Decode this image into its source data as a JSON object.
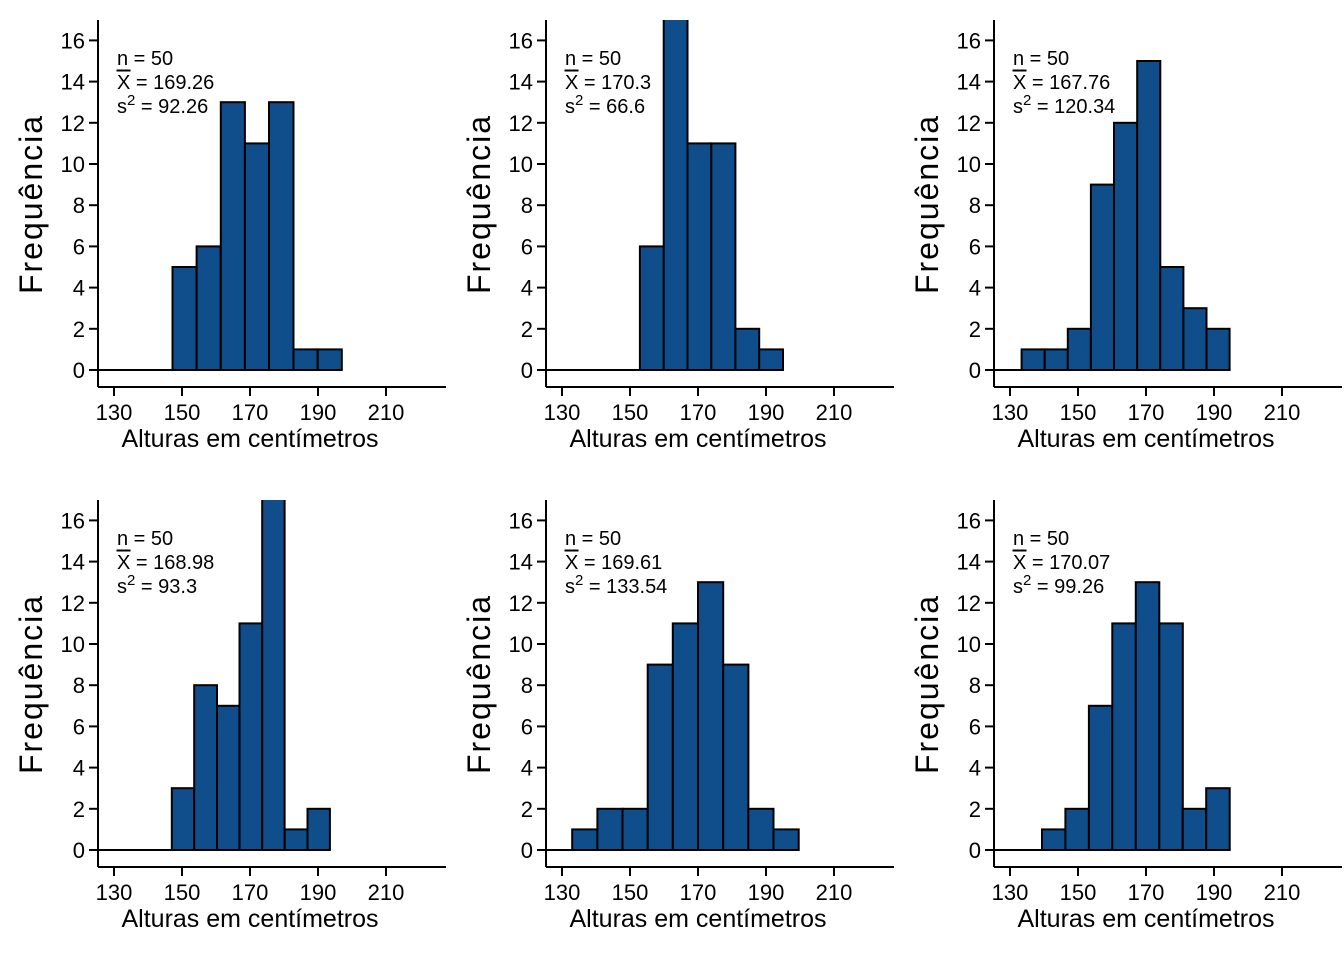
{
  "figure": {
    "background": "#ffffff",
    "text_color": "#000000",
    "annotation_symbols": {
      "n_symbol": "n",
      "mean_symbol": "X",
      "mean_decoration": "overline",
      "variance_symbol": "s",
      "variance_exponent": "2",
      "equals": " = "
    }
  },
  "chart_data": {
    "type": "bar",
    "variant": "histogram-small-multiples",
    "grid": {
      "rows": 2,
      "cols": 3
    },
    "shared": {
      "title": "",
      "xlabel": "Alturas em centímetros",
      "ylabel": "Frequência",
      "x_ticks": [
        130,
        150,
        170,
        190,
        210
      ],
      "x_tick_labels": [
        "130",
        "150",
        "170",
        "190",
        "210"
      ],
      "y_ticks": [
        0,
        2,
        4,
        6,
        8,
        10,
        12,
        14,
        16
      ],
      "y_tick_labels": [
        "0",
        "2",
        "4",
        "6",
        "8",
        "10",
        "12",
        "14",
        "16"
      ],
      "xlim": [
        125,
        227
      ],
      "ylim": [
        0,
        17
      ],
      "grid_lines": false,
      "bar_fill": "#104E8B",
      "bar_stroke": "#000000",
      "note": "bars taller than ylim max are clipped at the top of the plot region"
    },
    "panels": [
      {
        "id": "top-left",
        "row": 1,
        "col": 1,
        "bin_edges": [
          147.2,
          154.3,
          161.4,
          168.5,
          175.6,
          182.8,
          189.9,
          197.0
        ],
        "counts": [
          5,
          6,
          13,
          11,
          13,
          1,
          1
        ],
        "stats": {
          "n": "50",
          "mean": "169.26",
          "variance": "92.26"
        }
      },
      {
        "id": "top-middle",
        "row": 1,
        "col": 2,
        "bin_edges": [
          152.9,
          159.9,
          166.9,
          173.9,
          181.0,
          188.0,
          195.0
        ],
        "counts": [
          6,
          19,
          11,
          11,
          2,
          1
        ],
        "stats": {
          "n": "50",
          "mean": "170.3",
          "variance": "66.6"
        }
      },
      {
        "id": "top-right",
        "row": 1,
        "col": 3,
        "bin_edges": [
          133.4,
          140.2,
          147.0,
          153.8,
          160.6,
          167.4,
          174.2,
          181.0,
          187.8,
          194.6
        ],
        "counts": [
          1,
          1,
          2,
          9,
          12,
          15,
          5,
          3,
          2
        ],
        "stats": {
          "n": "50",
          "mean": "167.76",
          "variance": "120.34"
        }
      },
      {
        "id": "bottom-left",
        "row": 2,
        "col": 1,
        "bin_edges": [
          147.0,
          153.6,
          160.3,
          166.9,
          173.6,
          180.2,
          186.9,
          193.5
        ],
        "counts": [
          3,
          8,
          7,
          11,
          18,
          1,
          2
        ],
        "stats": {
          "n": "50",
          "mean": "168.98",
          "variance": "93.3"
        }
      },
      {
        "id": "bottom-middle",
        "row": 2,
        "col": 2,
        "bin_edges": [
          133.0,
          140.4,
          147.8,
          155.2,
          162.6,
          170.0,
          177.4,
          184.8,
          192.2,
          199.6
        ],
        "counts": [
          1,
          2,
          2,
          9,
          11,
          13,
          9,
          2,
          1
        ],
        "stats": {
          "n": "50",
          "mean": "169.61",
          "variance": "133.54"
        }
      },
      {
        "id": "bottom-right",
        "row": 2,
        "col": 3,
        "bin_edges": [
          139.4,
          146.3,
          153.2,
          160.1,
          167.0,
          173.9,
          180.8,
          187.7,
          194.6
        ],
        "counts": [
          1,
          2,
          7,
          11,
          13,
          11,
          2,
          3
        ],
        "stats": {
          "n": "50",
          "mean": "170.07",
          "variance": "99.26"
        }
      }
    ]
  }
}
